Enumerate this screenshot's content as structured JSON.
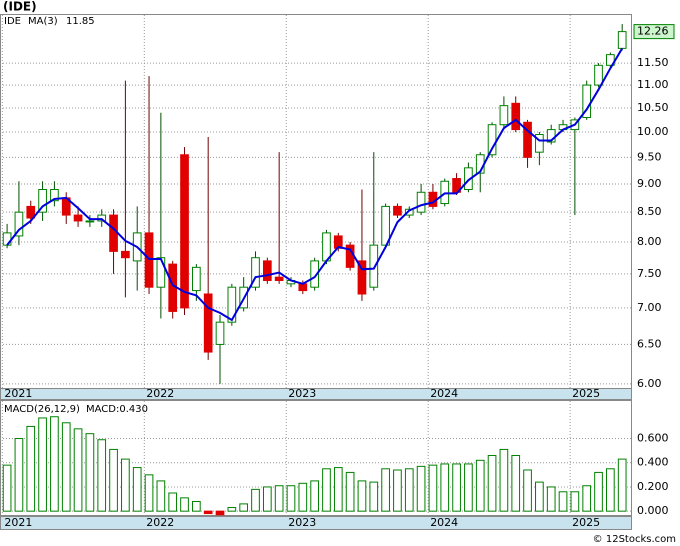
{
  "chart_data": [
    {
      "type": "candlestick",
      "title": "(IDE)",
      "name": "IDE",
      "up_color": "#008000",
      "down_color": "#e00000",
      "log_scale": true,
      "grid": true,
      "open": [
        7.95,
        8.1,
        8.6,
        8.5,
        8.7,
        8.75,
        8.45,
        8.35,
        8.35,
        8.45,
        7.85,
        7.7,
        8.15,
        7.3,
        7.65,
        9.55,
        7.25,
        7.2,
        6.5,
        6.8,
        7.0,
        7.3,
        7.7,
        7.45,
        7.35,
        7.35,
        7.3,
        7.7,
        8.1,
        7.95,
        7.7,
        7.3,
        7.95,
        8.6,
        8.45,
        8.5,
        8.85,
        8.65,
        9.1,
        8.9,
        9.2,
        9.55,
        10.15,
        10.6,
        10.2,
        9.6,
        9.8,
        10.05,
        10.05,
        10.3,
        11.0,
        11.45,
        11.85
      ],
      "high": [
        8.3,
        9.05,
        8.7,
        9.05,
        9.05,
        8.85,
        8.6,
        8.45,
        8.55,
        8.55,
        11.1,
        8.6,
        11.2,
        10.4,
        7.7,
        9.7,
        7.65,
        9.9,
        6.9,
        7.35,
        7.45,
        7.85,
        7.75,
        9.6,
        7.45,
        7.4,
        7.75,
        8.2,
        8.15,
        8.0,
        8.9,
        9.6,
        8.65,
        8.65,
        8.6,
        9.0,
        9.0,
        9.1,
        9.2,
        9.4,
        9.6,
        10.2,
        10.75,
        10.75,
        10.25,
        10.0,
        10.15,
        10.25,
        10.3,
        11.1,
        11.5,
        11.75,
        12.45
      ],
      "low": [
        7.9,
        7.95,
        8.3,
        8.35,
        8.6,
        8.3,
        8.25,
        8.25,
        8.25,
        7.5,
        7.15,
        7.25,
        7.2,
        6.85,
        6.85,
        6.9,
        7.1,
        6.3,
        6.0,
        6.75,
        6.95,
        7.25,
        7.35,
        7.35,
        7.3,
        7.2,
        7.25,
        7.65,
        7.85,
        7.55,
        7.1,
        7.25,
        7.9,
        8.4,
        8.4,
        8.45,
        8.55,
        8.6,
        8.8,
        8.85,
        8.85,
        9.5,
        10.1,
        10.0,
        9.3,
        9.35,
        9.75,
        10.0,
        8.45,
        10.25,
        10.95,
        11.4,
        11.8
      ],
      "close": [
        8.15,
        8.5,
        8.4,
        8.9,
        8.9,
        8.45,
        8.35,
        8.35,
        8.45,
        7.85,
        7.75,
        8.15,
        7.3,
        7.75,
        6.95,
        7.0,
        7.6,
        6.4,
        6.8,
        7.3,
        7.3,
        7.75,
        7.4,
        7.4,
        7.4,
        7.25,
        7.7,
        8.15,
        7.9,
        7.6,
        7.2,
        7.95,
        8.6,
        8.45,
        8.55,
        8.85,
        8.6,
        9.05,
        8.85,
        9.3,
        9.55,
        10.15,
        10.55,
        10.05,
        9.5,
        9.95,
        10.05,
        10.15,
        10.25,
        11.0,
        11.45,
        11.7,
        12.26
      ],
      "ma": {
        "name": "MA(3)",
        "color": "#0000dd",
        "value_label": "11.85",
        "values": [
          7.95,
          8.2,
          8.35,
          8.6,
          8.73,
          8.75,
          8.57,
          8.38,
          8.38,
          8.22,
          8.02,
          7.92,
          7.73,
          7.73,
          7.33,
          7.23,
          7.18,
          7.0,
          6.93,
          6.83,
          7.13,
          7.45,
          7.48,
          7.52,
          7.4,
          7.35,
          7.45,
          7.7,
          7.92,
          7.88,
          7.57,
          7.58,
          7.92,
          8.33,
          8.53,
          8.62,
          8.67,
          8.83,
          8.83,
          9.07,
          9.23,
          9.67,
          10.08,
          10.25,
          10.03,
          9.83,
          9.83,
          10.05,
          10.15,
          10.47,
          10.9,
          11.38,
          11.85
        ]
      },
      "ylim": [
        5.95,
        12.68
      ],
      "yticks": [
        {
          "value": 6,
          "label": "6.00"
        },
        {
          "value": 6.5,
          "label": "6.50"
        },
        {
          "value": 7,
          "label": "7.00"
        },
        {
          "value": 7.5,
          "label": "7.50"
        },
        {
          "value": 8,
          "label": "8.00"
        },
        {
          "value": 8.5,
          "label": "8.50"
        },
        {
          "value": 9,
          "label": "9.00"
        },
        {
          "value": 9.5,
          "label": "9.50"
        },
        {
          "value": 10,
          "label": "10.00"
        },
        {
          "value": 10.5,
          "label": "10.50"
        },
        {
          "value": 11,
          "label": "11.00"
        },
        {
          "value": 11.5,
          "label": "11.50"
        }
      ],
      "xlim": [
        -0.6,
        52.83
      ],
      "xticks": [
        {
          "value": -0.4,
          "label": "2021"
        },
        {
          "value": 11.6,
          "label": "2022"
        },
        {
          "value": 23.6,
          "label": "2023"
        },
        {
          "value": 35.6,
          "label": "2024"
        },
        {
          "value": 47.6,
          "label": "2025"
        }
      ]
    },
    {
      "type": "bar",
      "title": "MACD(26,12,9)",
      "current_label": "MACD:0.430",
      "color": "#008000",
      "negative_color": "#e00000",
      "grid": true,
      "values": [
        0.38,
        0.6,
        0.7,
        0.77,
        0.78,
        0.73,
        0.68,
        0.64,
        0.59,
        0.51,
        0.43,
        0.36,
        0.3,
        0.25,
        0.15,
        0.11,
        0.08,
        -0.02,
        -0.03,
        0.03,
        0.06,
        0.18,
        0.2,
        0.21,
        0.21,
        0.23,
        0.25,
        0.35,
        0.36,
        0.32,
        0.25,
        0.24,
        0.35,
        0.34,
        0.35,
        0.37,
        0.38,
        0.39,
        0.39,
        0.39,
        0.42,
        0.46,
        0.51,
        0.46,
        0.34,
        0.24,
        0.2,
        0.16,
        0.16,
        0.21,
        0.32,
        0.35,
        0.43
      ],
      "ylim": [
        -0.04,
        0.91
      ],
      "yticks": [
        {
          "value": 0,
          "label": "0.000"
        },
        {
          "value": 0.2,
          "label": "0.200"
        },
        {
          "value": 0.4,
          "label": "0.400"
        },
        {
          "value": 0.6,
          "label": "0.600"
        }
      ],
      "xlim": [
        -0.6,
        52.83
      ],
      "xticks": [
        {
          "value": -0.4,
          "label": "2021"
        },
        {
          "value": 11.6,
          "label": "2022"
        },
        {
          "value": 23.6,
          "label": "2023"
        },
        {
          "value": 35.6,
          "label": "2024"
        },
        {
          "value": 47.6,
          "label": "2025"
        }
      ]
    }
  ],
  "footer": "© 12Stocks.com"
}
